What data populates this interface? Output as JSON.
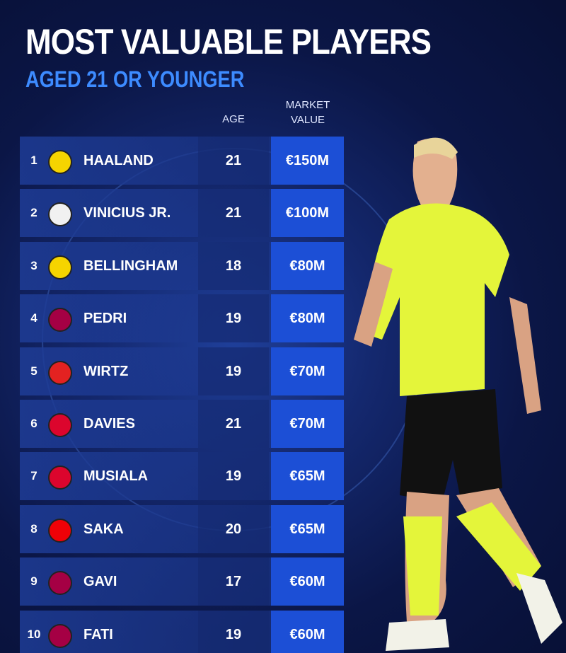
{
  "header": {
    "title": "MOST VALUABLE PLAYERS",
    "subtitle": "AGED 21 OR YOUNGER"
  },
  "table": {
    "columns": [
      "AGE",
      "MARKET VALUE"
    ],
    "rows": [
      [
        1,
        "HAALAND",
        21,
        "€150M"
      ],
      [
        2,
        "VINICIUS JR.",
        21,
        "€100M"
      ],
      [
        3,
        "BELLINGHAM",
        18,
        "€80M"
      ],
      [
        4,
        "PEDRI",
        19,
        "€80M"
      ],
      [
        5,
        "WIRTZ",
        19,
        "€70M"
      ],
      [
        6,
        "DAVIES",
        21,
        "€70M"
      ],
      [
        7,
        "MUSIALA",
        19,
        "€65M"
      ],
      [
        8,
        "SAKA",
        20,
        "€65M"
      ],
      [
        9,
        "GAVI",
        17,
        "€60M"
      ],
      [
        10,
        "FATI",
        19,
        "€60M"
      ]
    ]
  }
}
